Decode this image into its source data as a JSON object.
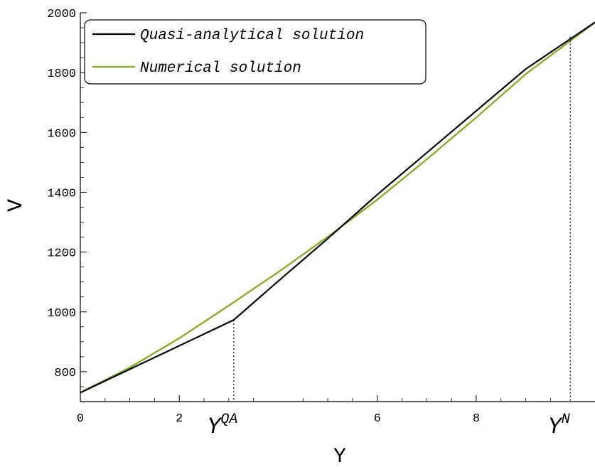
{
  "chart_data": {
    "type": "line",
    "xlabel": "Y",
    "ylabel": "V",
    "xlim": [
      0,
      10.4
    ],
    "ylim": [
      700,
      2000
    ],
    "xticks": [
      0,
      2,
      6,
      8
    ],
    "xtick_labels": [
      "0",
      "2",
      "6",
      "8"
    ],
    "yticks": [
      800,
      1000,
      1200,
      1400,
      1600,
      1800,
      2000
    ],
    "ytick_labels": [
      "800",
      "1000",
      "1200",
      "1400",
      "1600",
      "1800",
      "2000"
    ],
    "grid": false,
    "legend_position": "top-left",
    "series": [
      {
        "name": "Quasi-analytical solution",
        "color": "#000000",
        "x": [
          0,
          3.1,
          4.0,
          5.0,
          6.0,
          7.0,
          8.0,
          9.0,
          10.4
        ],
        "y": [
          730,
          973,
          1103,
          1245,
          1392,
          1532,
          1672,
          1812,
          1968
        ]
      },
      {
        "name": "Numerical solution",
        "color": "#8aab2e",
        "x": [
          0,
          1.0,
          2.0,
          3.0,
          4.0,
          5.0,
          6.0,
          7.0,
          8.0,
          9.0,
          10.4
        ],
        "y": [
          730,
          814,
          912,
          1021,
          1133,
          1251,
          1375,
          1510,
          1650,
          1795,
          1968
        ]
      }
    ],
    "markers": [
      {
        "x": 3.1,
        "y": 973,
        "label": "Y",
        "superscript": "QA",
        "superscript_italic": false
      },
      {
        "x": 9.9,
        "y": 1920,
        "label": "Y",
        "superscript": "N",
        "superscript_italic": true
      }
    ]
  }
}
